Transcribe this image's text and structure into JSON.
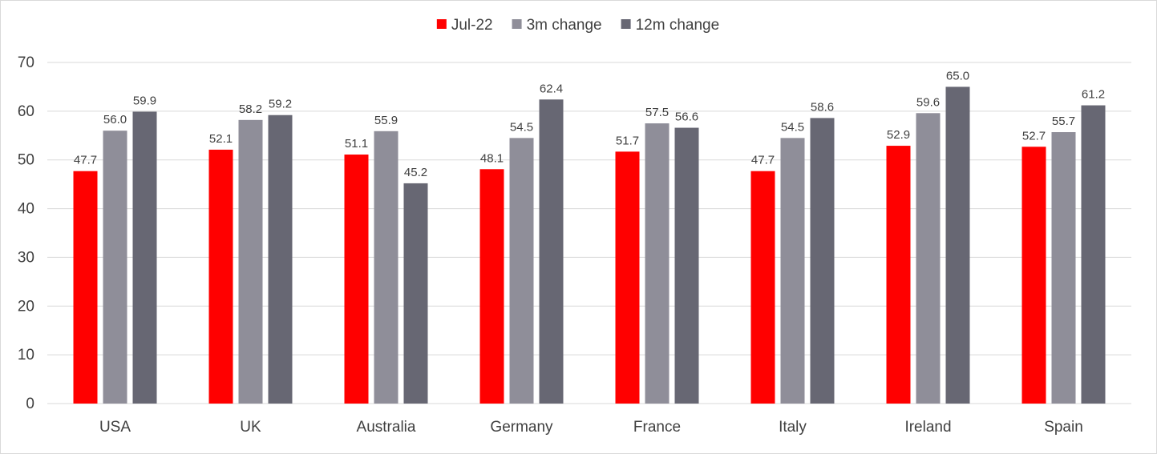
{
  "chart_data": {
    "type": "bar",
    "title": "",
    "xlabel": "",
    "ylabel": "",
    "categories": [
      "USA",
      "UK",
      "Australia",
      "Germany",
      "France",
      "Italy",
      "Ireland",
      "Spain"
    ],
    "series": [
      {
        "name": "Jul-22",
        "color": "#ff0000",
        "values": [
          47.7,
          52.1,
          51.1,
          48.1,
          51.7,
          47.7,
          52.9,
          52.7
        ]
      },
      {
        "name": "3m change",
        "color": "#8f8e99",
        "values": [
          56.0,
          58.2,
          55.9,
          54.5,
          57.5,
          54.5,
          59.6,
          55.7
        ]
      },
      {
        "name": "12m change",
        "color": "#676773",
        "values": [
          59.9,
          59.2,
          45.2,
          62.4,
          56.6,
          58.6,
          65.0,
          61.2
        ]
      }
    ],
    "ylim": [
      0,
      70
    ],
    "yticks": [
      0,
      10,
      20,
      30,
      40,
      50,
      60,
      70
    ],
    "grid": true,
    "legend_position": "top-center",
    "data_labels": true,
    "label_decimals": 1
  }
}
